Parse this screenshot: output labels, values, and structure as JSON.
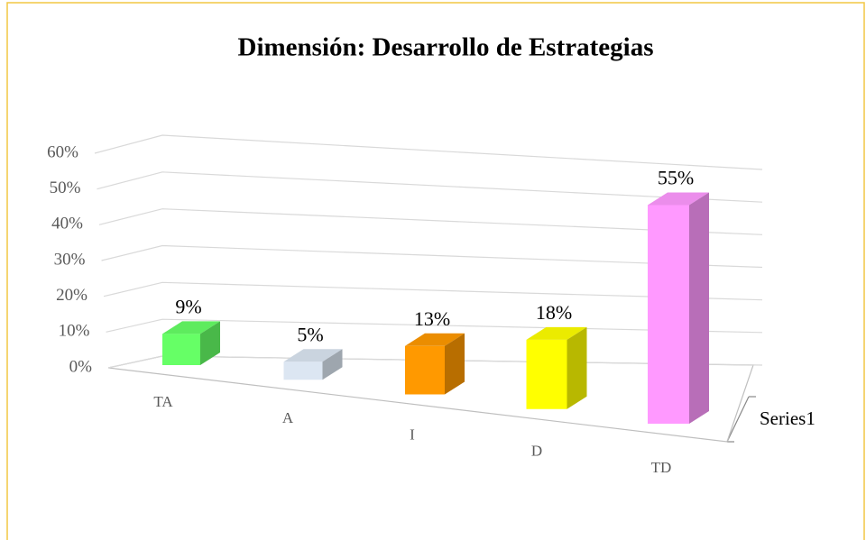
{
  "chart_data": {
    "type": "bar3d",
    "title": "Dimensión: Desarrollo de Estrategias",
    "categories": [
      "TA",
      "A",
      "I",
      "D",
      "TD"
    ],
    "series": [
      {
        "name": "Series1",
        "colors": [
          "#66ff66",
          "#dce6f2",
          "#ff9900",
          "#ffff00",
          "#ff99ff"
        ],
        "values": [
          9,
          5,
          13,
          18,
          55
        ],
        "value_labels": [
          "9%",
          "5%",
          "13%",
          "18%",
          "55%"
        ]
      }
    ],
    "ylim": [
      0,
      60
    ],
    "yticks": [
      {
        "value": 0,
        "label": "0%"
      },
      {
        "value": 10,
        "label": "10%"
      },
      {
        "value": 20,
        "label": "20%"
      },
      {
        "value": 30,
        "label": "30%"
      },
      {
        "value": 40,
        "label": "40%"
      },
      {
        "value": 50,
        "label": "50%"
      },
      {
        "value": 60,
        "label": "60%"
      }
    ],
    "grid": true
  }
}
